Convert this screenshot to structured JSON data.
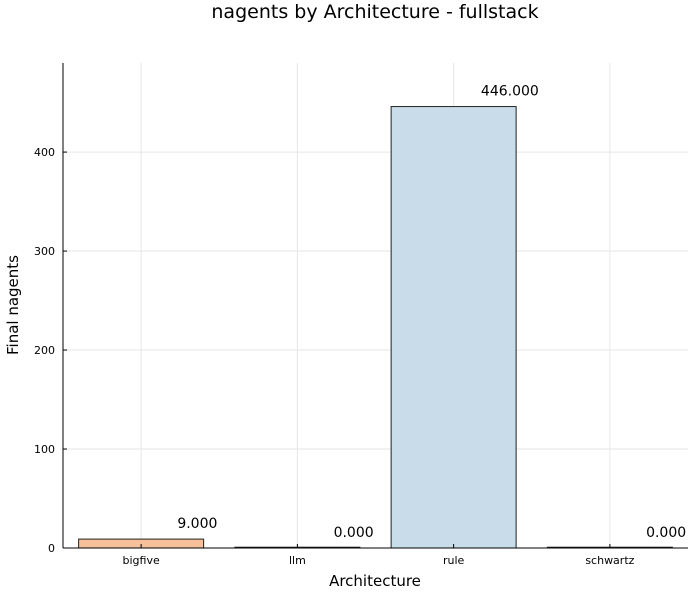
{
  "chart_data": {
    "type": "bar",
    "title": "nagents by Architecture - fullstack",
    "xlabel": "Architecture",
    "ylabel": "Final nagents",
    "categories": [
      "bigfive",
      "llm",
      "rule",
      "schwartz"
    ],
    "values": [
      9,
      0,
      446,
      0
    ],
    "value_labels": [
      "9.000",
      "0.000",
      "446.000",
      "0.000"
    ],
    "colors": [
      "#f5c09a",
      "#f0f0f0",
      "#c8dcea",
      "#f0f0f0"
    ],
    "ylim": [
      0,
      490
    ],
    "yticks": [
      0,
      100,
      200,
      300,
      400
    ],
    "grid": true,
    "legend": "none"
  }
}
